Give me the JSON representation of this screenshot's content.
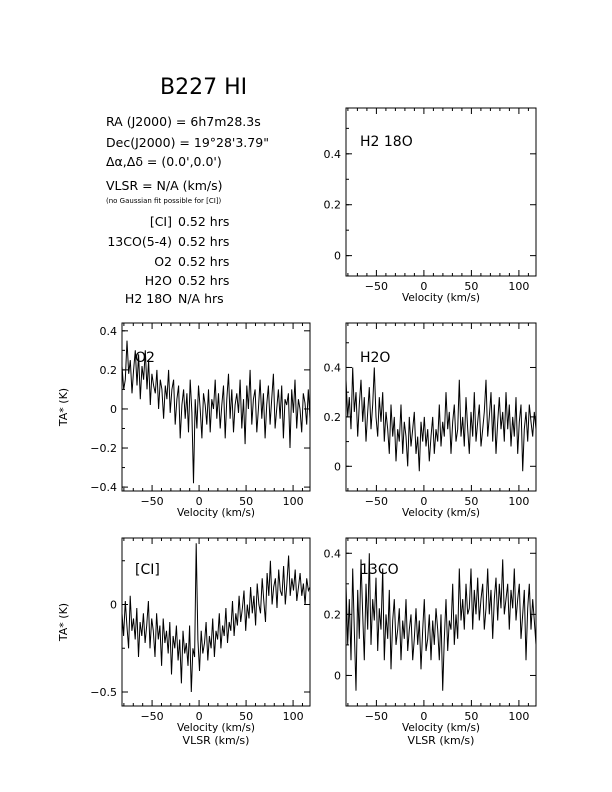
{
  "title": "B227 HI",
  "header": {
    "ra": "RA (J2000) = 6h7m28.3s",
    "dec": "Dec(J2000) = 19°28'3.79\"",
    "offset": "Δα,Δδ = (0.0',0.0')",
    "vlsr": "VLSR = N/A (km/s)",
    "note": "(no Gaussian fit possible for [CI])"
  },
  "integration": [
    {
      "line": "[CI]",
      "tint": "0.52 hrs"
    },
    {
      "line": "13CO(5-4)",
      "tint": "0.52 hrs"
    },
    {
      "line": "O2",
      "tint": "0.52 hrs"
    },
    {
      "line": "H2O",
      "tint": "0.52 hrs"
    },
    {
      "line": "H2 18O",
      "tint": "N/A hrs"
    }
  ],
  "chart_data": [
    {
      "type": "line",
      "label": "H2 18O",
      "xlim": [
        -82,
        118
      ],
      "ylim": [
        -0.08,
        0.58
      ],
      "xticks": [
        -50,
        0,
        50,
        100
      ],
      "yticks": [
        0,
        0.2,
        0.4
      ],
      "xlabel": "Velocity (km/s)",
      "ylabel": "",
      "series": []
    },
    {
      "type": "line",
      "label": "O2",
      "xlim": [
        -82,
        118
      ],
      "ylim": [
        -0.42,
        0.44
      ],
      "xticks": [
        -50,
        0,
        50,
        100
      ],
      "yticks": [
        -0.4,
        -0.2,
        0,
        0.2,
        0.4
      ],
      "xlabel": "Velocity (km/s)",
      "ylabel": "TA* (K)",
      "series": [
        {
          "x_start": -82,
          "x_end": 118,
          "values": [
            0.22,
            0.1,
            0.15,
            0.35,
            0.18,
            0.25,
            0.08,
            0.2,
            0.3,
            0.12,
            0.28,
            0.05,
            0.22,
            0.15,
            0.3,
            0.1,
            0.25,
            0.02,
            0.18,
            0.12,
            0.08,
            0.2,
            0.0,
            0.15,
            0.1,
            -0.05,
            0.12,
            0.05,
            0.2,
            -0.02,
            0.1,
            0.15,
            -0.08,
            0.05,
            0.12,
            -0.15,
            0.02,
            0.1,
            -0.05,
            0.08,
            -0.12,
            0.15,
            -0.02,
            -0.38,
            0.05,
            -0.1,
            0.12,
            0.0,
            -0.15,
            0.08,
            0.02,
            -0.08,
            0.1,
            -0.12,
            0.05,
            0.0,
            0.15,
            -0.05,
            0.08,
            -0.1,
            0.02,
            0.12,
            -0.15,
            0.05,
            0.18,
            -0.05,
            0.1,
            -0.12,
            0.02,
            0.08,
            -0.02,
            0.15,
            -0.1,
            0.05,
            -0.18,
            0.12,
            0.0,
            0.2,
            -0.08,
            0.05,
            0.1,
            -0.12,
            0.0,
            0.15,
            -0.05,
            0.08,
            -0.15,
            0.02,
            0.12,
            -0.08,
            0.05,
            0.18,
            -0.1,
            0.0,
            0.1,
            -0.05,
            0.12,
            -0.15,
            0.05,
            0.02,
            0.08,
            -0.2,
            0.1,
            -0.02,
            0.15,
            -0.1,
            0.05,
            0.0,
            -0.12,
            0.08,
            0.03,
            -0.08,
            0.1,
            -0.05
          ]
        }
      ]
    },
    {
      "type": "line",
      "label": "H2O",
      "xlim": [
        -82,
        118
      ],
      "ylim": [
        -0.1,
        0.58
      ],
      "xticks": [
        -50,
        0,
        50,
        100
      ],
      "yticks": [
        0,
        0.2,
        0.4
      ],
      "xlabel": "Velocity (km/s)",
      "ylabel": "",
      "series": [
        {
          "x_start": -82,
          "x_end": 118,
          "values": [
            0.35,
            0.2,
            0.28,
            0.15,
            0.4,
            0.22,
            0.3,
            0.12,
            0.25,
            0.35,
            0.18,
            0.28,
            0.1,
            0.22,
            0.32,
            0.15,
            0.25,
            0.4,
            0.2,
            0.12,
            0.28,
            0.18,
            0.3,
            0.1,
            0.22,
            0.15,
            0.05,
            0.25,
            0.12,
            0.2,
            0.02,
            0.15,
            0.1,
            0.25,
            0.05,
            0.18,
            0.12,
            0.0,
            0.2,
            0.08,
            0.15,
            0.22,
            0.05,
            0.12,
            -0.02,
            0.18,
            0.1,
            0.2,
            0.08,
            0.15,
            0.02,
            0.12,
            0.2,
            0.05,
            0.15,
            0.1,
            0.25,
            0.08,
            0.18,
            0.12,
            0.3,
            0.15,
            0.22,
            0.05,
            0.18,
            0.25,
            0.1,
            0.15,
            0.35,
            0.12,
            0.2,
            0.08,
            0.28,
            0.15,
            0.05,
            0.22,
            0.12,
            0.3,
            0.1,
            0.18,
            0.25,
            0.08,
            0.15,
            0.22,
            0.35,
            0.12,
            0.2,
            0.3,
            0.1,
            0.25,
            0.05,
            0.18,
            0.28,
            0.15,
            0.22,
            0.1,
            0.3,
            0.15,
            0.25,
            0.08,
            0.2,
            0.12,
            0.28,
            0.05,
            0.18,
            0.25,
            -0.02,
            0.15,
            0.22,
            0.1,
            0.25,
            0.18,
            0.12,
            0.22,
            0.15
          ]
        }
      ]
    },
    {
      "type": "line",
      "label": "[CI]",
      "xlim": [
        -82,
        118
      ],
      "ylim": [
        -0.58,
        0.38
      ],
      "xticks": [
        -50,
        0,
        50,
        100
      ],
      "yticks": [
        -0.5,
        0
      ],
      "xlabel": "Velocity (km/s)",
      "xlabel2": "VLSR (km/s)",
      "ylabel": "TA* (K)",
      "series": [
        {
          "x_start": -82,
          "x_end": 118,
          "values": [
            -0.05,
            -0.18,
            0.02,
            -0.12,
            -0.25,
            0.05,
            -0.15,
            -0.08,
            -0.2,
            -0.02,
            -0.3,
            -0.1,
            -0.18,
            -0.05,
            -0.22,
            -0.12,
            0.02,
            -0.25,
            -0.08,
            -0.15,
            -0.3,
            -0.05,
            -0.2,
            -0.12,
            -0.35,
            -0.08,
            -0.22,
            -0.15,
            -0.28,
            -0.1,
            -0.4,
            -0.18,
            -0.25,
            -0.12,
            -0.32,
            -0.2,
            -0.45,
            -0.15,
            -0.28,
            -0.22,
            -0.35,
            -0.12,
            -0.5,
            -0.25,
            -0.3,
            0.35,
            -0.2,
            -0.38,
            -0.15,
            -0.28,
            -0.22,
            -0.1,
            -0.32,
            -0.18,
            -0.25,
            -0.08,
            -0.3,
            -0.15,
            -0.2,
            -0.05,
            -0.25,
            -0.12,
            -0.18,
            -0.02,
            -0.22,
            -0.1,
            -0.15,
            0.02,
            -0.18,
            -0.05,
            -0.12,
            0.05,
            -0.1,
            -0.02,
            0.08,
            -0.15,
            0.0,
            -0.08,
            0.1,
            -0.05,
            0.05,
            -0.12,
            0.12,
            0.0,
            -0.05,
            0.15,
            0.02,
            -0.1,
            0.18,
            0.05,
            0.25,
            0.0,
            0.1,
            0.15,
            -0.02,
            0.2,
            0.08,
            0.05,
            0.22,
            0.0,
            0.12,
            0.28,
            0.05,
            0.15,
            0.08,
            0.2,
            0.02,
            0.1,
            0.18,
            0.05,
            0.12,
            0.0,
            0.15,
            0.08,
            0.1
          ]
        }
      ]
    },
    {
      "type": "line",
      "label": "13CO",
      "xlim": [
        -82,
        118
      ],
      "ylim": [
        -0.1,
        0.45
      ],
      "xticks": [
        -50,
        0,
        50,
        100
      ],
      "yticks": [
        0,
        0.2,
        0.4
      ],
      "xlabel": "Velocity (km/s)",
      "xlabel2": "VLSR (km/s)",
      "ylabel": "",
      "series": [
        {
          "x_start": -82,
          "x_end": 118,
          "values": [
            0.3,
            0.1,
            0.25,
            0.05,
            0.35,
            0.15,
            -0.05,
            0.28,
            0.12,
            0.38,
            0.2,
            0.05,
            0.3,
            0.15,
            0.4,
            0.1,
            0.25,
            0.18,
            0.32,
            0.08,
            0.22,
            0.15,
            0.35,
            0.05,
            0.2,
            0.12,
            0.28,
            0.02,
            0.18,
            0.25,
            0.1,
            0.15,
            0.22,
            0.05,
            0.18,
            0.12,
            0.25,
            0.08,
            0.15,
            0.2,
            0.05,
            0.12,
            0.22,
            0.1,
            0.18,
            0.02,
            0.15,
            0.25,
            0.08,
            0.12,
            0.2,
            0.05,
            0.18,
            0.1,
            0.22,
            0.15,
            0.05,
            0.2,
            -0.05,
            0.12,
            0.25,
            0.08,
            0.18,
            0.15,
            0.3,
            0.1,
            0.2,
            0.12,
            0.35,
            0.18,
            0.25,
            0.15,
            0.3,
            0.2,
            0.22,
            0.35,
            0.15,
            0.28,
            0.2,
            0.32,
            0.18,
            0.25,
            0.3,
            0.15,
            0.22,
            0.35,
            0.2,
            0.28,
            0.12,
            0.25,
            0.32,
            0.18,
            0.3,
            0.22,
            0.38,
            0.2,
            0.25,
            0.3,
            0.15,
            0.28,
            0.22,
            0.35,
            0.18,
            0.25,
            0.3,
            0.12,
            0.2,
            0.28,
            0.05,
            0.22,
            0.3,
            0.15,
            0.25,
            0.18,
            0.1
          ]
        }
      ]
    }
  ]
}
